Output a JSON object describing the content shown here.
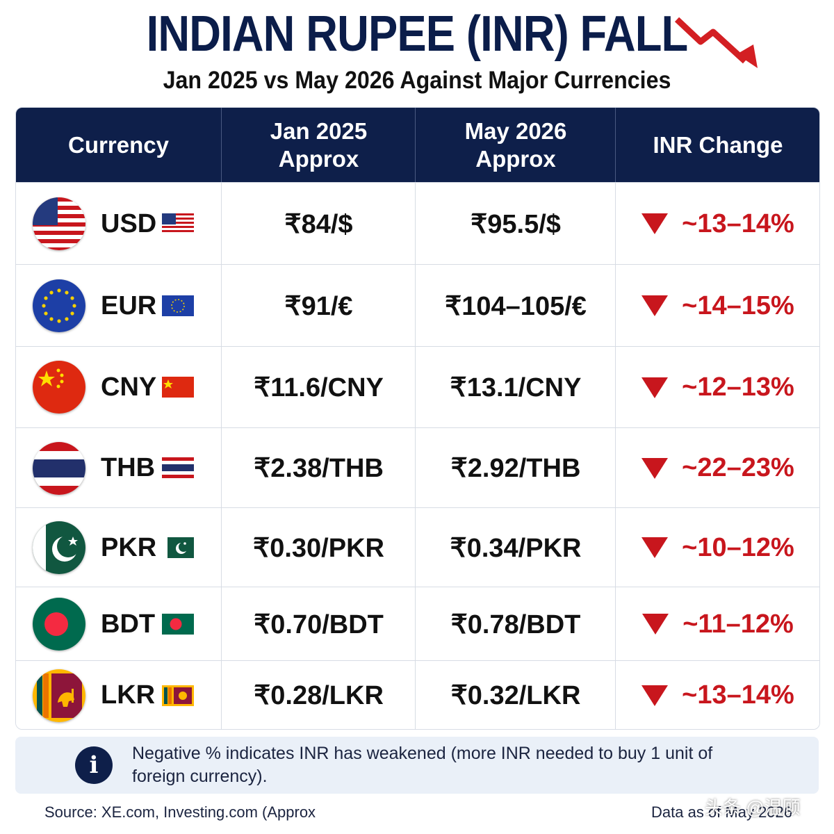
{
  "title": "INDIAN RUPEE (INR) FALL",
  "subtitle": "Jan 2025 vs May 2026 Against Major Currencies",
  "colors": {
    "navy": "#0e1f4a",
    "red": "#c8161d"
  },
  "table": {
    "headers": [
      "Currency",
      "Jan 2025\nApprox",
      "May 2026\nApprox",
      "INR Change"
    ],
    "rows": [
      {
        "code": "USD",
        "jan": "₹84/$",
        "may": "₹95.5/$",
        "change": "~13–14%"
      },
      {
        "code": "EUR",
        "jan": "₹91/€",
        "may": "₹104–105/€",
        "change": "~14–15%"
      },
      {
        "code": "CNY",
        "jan": "₹11.6/CNY",
        "may": "₹13.1/CNY",
        "change": "~12–13%"
      },
      {
        "code": "THB",
        "jan": "₹2.38/THB",
        "may": "₹2.92/THB",
        "change": "~22–23%"
      },
      {
        "code": "PKR",
        "jan": "₹0.30/PKR",
        "may": "₹0.34/PKR",
        "change": "~10–12%"
      },
      {
        "code": "BDT",
        "jan": "₹0.70/BDT",
        "may": "₹0.78/BDT",
        "change": "~11–12%"
      },
      {
        "code": "LKR",
        "jan": "₹0.28/LKR",
        "may": "₹0.32/LKR",
        "change": "~13–14%"
      }
    ]
  },
  "note": "Negative % indicates INR has weakened (more INR needed to buy 1 unit of foreign currency).",
  "source": "Source: XE.com, Investing.com (Approx",
  "data_as_of": "Data as of May 2026",
  "watermark": "头条 @温顾",
  "icons": {
    "title": "trend-down-arrow-icon",
    "change": "down-triangle-icon",
    "note": "info-icon",
    "flags": [
      "us-flag-icon",
      "eu-flag-icon",
      "china-flag-icon",
      "thailand-flag-icon",
      "pakistan-flag-icon",
      "bangladesh-flag-icon",
      "sri-lanka-flag-icon"
    ]
  }
}
